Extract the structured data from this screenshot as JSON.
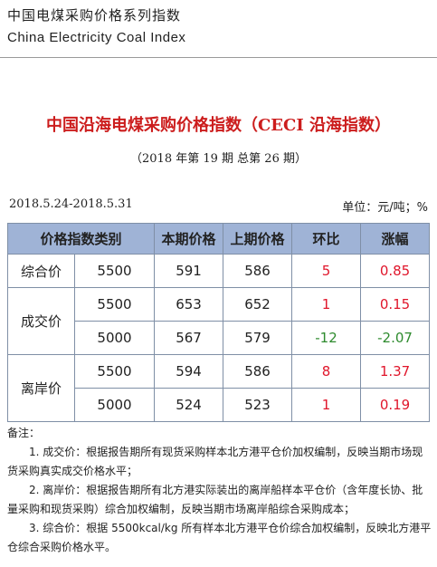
{
  "header": {
    "cn": "中国电煤采购价格系列指数",
    "en": "China Electricity Coal Index"
  },
  "title": "中国沿海电煤采购价格指数（CECI 沿海指数）",
  "subtitle": "（2018 年第 19 期   总第 26 期）",
  "date_range": "2018.5.24-2018.5.31",
  "unit": "单位：元/吨；%",
  "table": {
    "headers": [
      "价格指数类别",
      "本期价格",
      "上期价格",
      "环比",
      "涨幅"
    ],
    "groups": [
      {
        "label": "综合价",
        "rows": [
          {
            "grade": "5500",
            "current": "591",
            "previous": "586",
            "change": "5",
            "pct": "0.85"
          }
        ]
      },
      {
        "label": "成交价",
        "rows": [
          {
            "grade": "5500",
            "current": "653",
            "previous": "652",
            "change": "1",
            "pct": "0.15"
          },
          {
            "grade": "5000",
            "current": "567",
            "previous": "579",
            "change": "-12",
            "pct": "-2.07"
          }
        ]
      },
      {
        "label": "离岸价",
        "rows": [
          {
            "grade": "5500",
            "current": "594",
            "previous": "586",
            "change": "8",
            "pct": "1.37"
          },
          {
            "grade": "5000",
            "current": "524",
            "previous": "523",
            "change": "1",
            "pct": "0.19"
          }
        ]
      }
    ]
  },
  "notes": {
    "heading": "备注：",
    "items": [
      "1. 成交价：根据报告期所有现货采购样本北方港平仓价加权编制，反映当期市场现货采购真实成交价格水平；",
      "2. 离岸价：根据报告期所有北方港实际装出的离岸船样本平仓价（含年度长协、批量采购和现货采购）综合加权编制，反映当期市场离岸船综合采购成本；",
      "3. 综合价：根据 5500kcal/kg 所有样本北方港平仓价综合加权编制，反映北方港平仓综合采购价格水平。"
    ]
  },
  "colors": {
    "title": "#cc1d1d",
    "header_bg": "#9fb3d6",
    "up": "#e0162b",
    "down": "#2e8b2e"
  }
}
